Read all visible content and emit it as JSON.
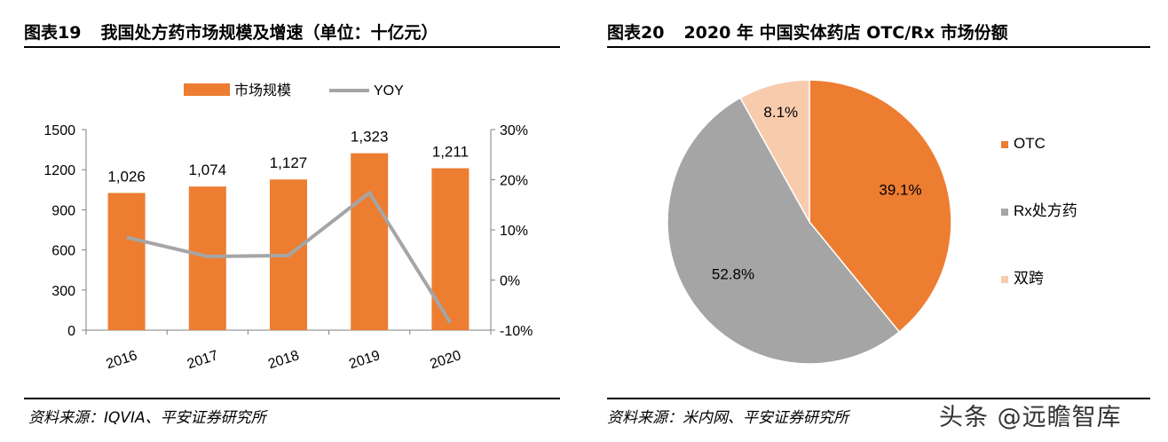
{
  "left": {
    "fig_no": "图表19",
    "title": "我国处方药市场规模及增速（单位：十亿元）",
    "source": "资料来源：IQVIA、平安证券研究所",
    "legend": {
      "bar": "市场规模",
      "line": "YOY"
    }
  },
  "right": {
    "fig_no": "图表20",
    "title": "2020 年 中国实体药店 OTC/Rx 市场份额",
    "source": "资料来源：米内网、平安证券研究所",
    "legend": [
      "OTC",
      "Rx处方药",
      "双跨"
    ]
  },
  "watermark": "头条 @远瞻智库",
  "colors": {
    "orange": "#ED7D31",
    "gray": "#A5A5A5",
    "peach": "#F8CBAD"
  },
  "chart_data": [
    {
      "type": "bar",
      "categories": [
        "2016",
        "2017",
        "2018",
        "2019",
        "2020"
      ],
      "series": [
        {
          "name": "市场规模",
          "type": "bar",
          "axis": "left",
          "values": [
            1026,
            1074,
            1127,
            1323,
            1211
          ],
          "labels": [
            "1,026",
            "1,074",
            "1,127",
            "1,323",
            "1,211"
          ]
        },
        {
          "name": "YOY",
          "type": "line",
          "axis": "right",
          "values": [
            8.5,
            4.7,
            4.9,
            17.4,
            -8.5
          ]
        }
      ],
      "y_left": {
        "min": 0,
        "max": 1500,
        "ticks": [
          "0",
          "300",
          "600",
          "900",
          "1200",
          "1500"
        ]
      },
      "y_right": {
        "min": -10,
        "max": 30,
        "ticks": [
          "-10%",
          "0%",
          "10%",
          "20%",
          "30%"
        ]
      },
      "legend_position": "top",
      "grid": false
    },
    {
      "type": "pie",
      "categories": [
        "OTC",
        "Rx处方药",
        "双跨"
      ],
      "values": [
        39.1,
        52.8,
        8.1
      ],
      "labels": [
        "39.1%",
        "52.8%",
        "8.1%"
      ],
      "legend_position": "right"
    }
  ]
}
